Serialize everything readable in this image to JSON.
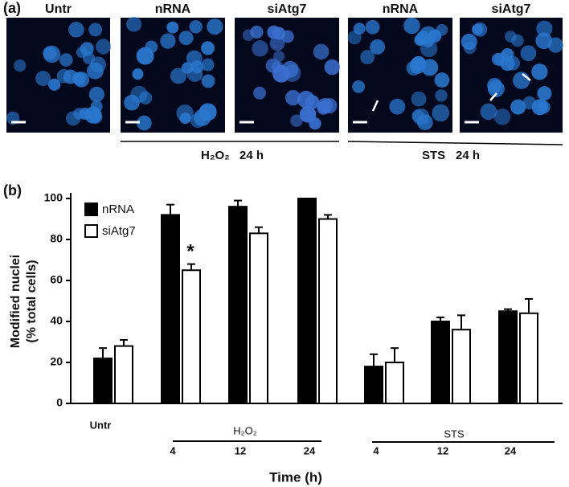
{
  "figure": {
    "panel_labels": [
      "(a)",
      "(b)"
    ],
    "image_labels": [
      "Untr",
      "nRNA",
      "siAtg7",
      "nRNA",
      "siAtg7"
    ],
    "treatments": [
      {
        "agent": "H₂O₂",
        "time": "24 h"
      },
      {
        "agent": "STS",
        "time": "24 h"
      }
    ]
  },
  "chart_data": {
    "type": "bar",
    "categories": [
      "Untr",
      "4",
      "12",
      "24",
      "4",
      "12",
      "24"
    ],
    "groups": [
      "H₂O₂",
      "STS"
    ],
    "series": [
      {
        "name": "nRNA",
        "color": "#000000",
        "values": [
          22,
          92,
          96,
          100,
          18,
          40,
          45
        ],
        "errors": [
          5,
          5,
          3,
          null,
          6,
          2,
          1
        ]
      },
      {
        "name": "siAtg7",
        "color": "#ffffff",
        "values": [
          28,
          65,
          83,
          90,
          20,
          36,
          44
        ],
        "errors": [
          3,
          3,
          3,
          2,
          7,
          7,
          7
        ]
      }
    ],
    "annotation": "*",
    "ylabel": [
      "Modified nuclei",
      "(% total cells)"
    ],
    "xlabel": "Time (h)",
    "ylim": [
      0,
      100
    ],
    "yticks": [
      0,
      20,
      40,
      60,
      80,
      100
    ]
  }
}
